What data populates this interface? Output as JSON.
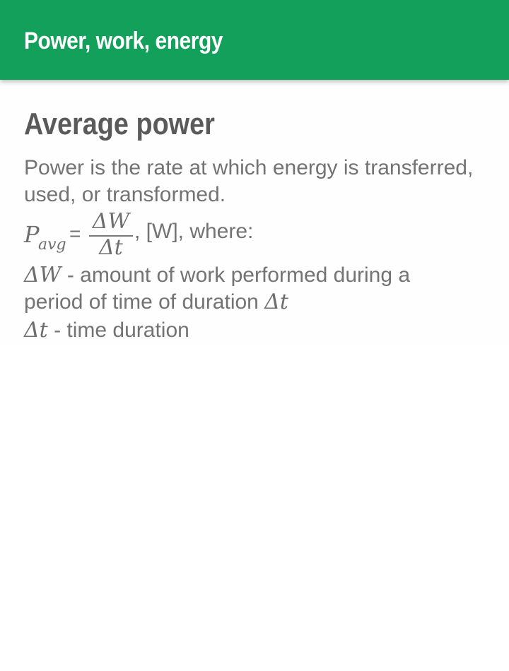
{
  "app_bar": {
    "title": "Power, work, energy"
  },
  "section": {
    "title": "Average power",
    "description": "Power is the rate at which energy is transferred, used, or transformed.",
    "formula": {
      "lhs_symbol": "P",
      "lhs_subscript": "avg",
      "equals": "=",
      "numerator": "ΔW",
      "denominator": "Δt",
      "unit_and_where": ", [W], where:"
    },
    "definitions": [
      {
        "symbol": "ΔW",
        "text_part1": " - amount of work performed during a",
        "text_part2": "period of time of duration ",
        "trailing_symbol": "Δt"
      },
      {
        "symbol": "Δt",
        "text": " - time duration"
      }
    ]
  },
  "colors": {
    "app_bar": "#12a05a",
    "title_text": "#5a5a5a",
    "body_text": "#737373"
  }
}
